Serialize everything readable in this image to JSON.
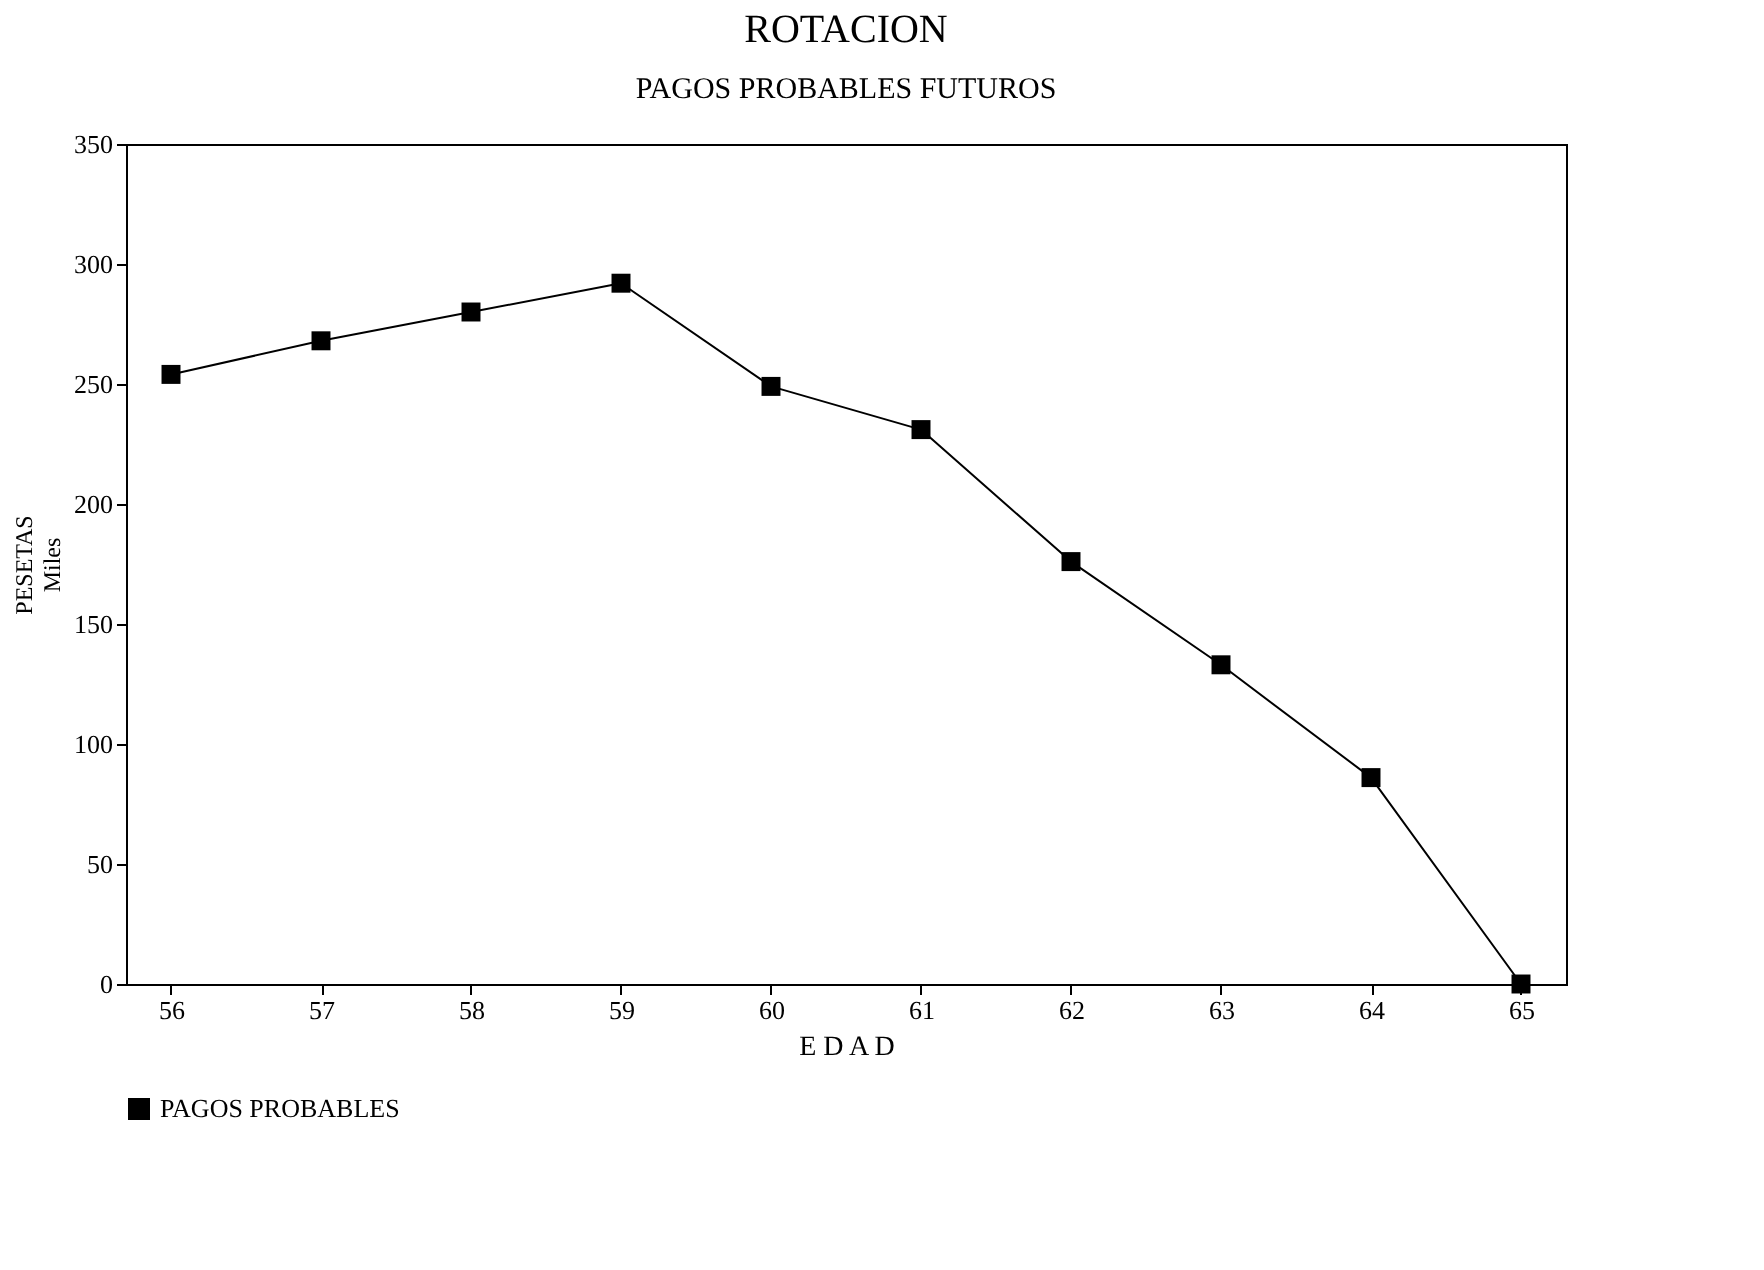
{
  "chart_data": {
    "type": "line",
    "title": "ROTACION",
    "subtitle": "PAGOS PROBABLES FUTUROS",
    "xlabel": "E D A D",
    "ylabel": "PESETAS\nMiles",
    "categories": [
      "56",
      "57",
      "58",
      "59",
      "60",
      "61",
      "62",
      "63",
      "64",
      "65"
    ],
    "series": [
      {
        "name": "PAGOS PROBABLES",
        "color": "#000000",
        "values": [
          254,
          268,
          280,
          292,
          249,
          231,
          176,
          133,
          86,
          0
        ]
      }
    ],
    "ylim": [
      0,
      350
    ],
    "yticks": [
      0,
      50,
      100,
      150,
      200,
      250,
      300,
      350
    ],
    "grid": false,
    "legend": "bottom",
    "marker": "square",
    "line_style": "solid"
  }
}
